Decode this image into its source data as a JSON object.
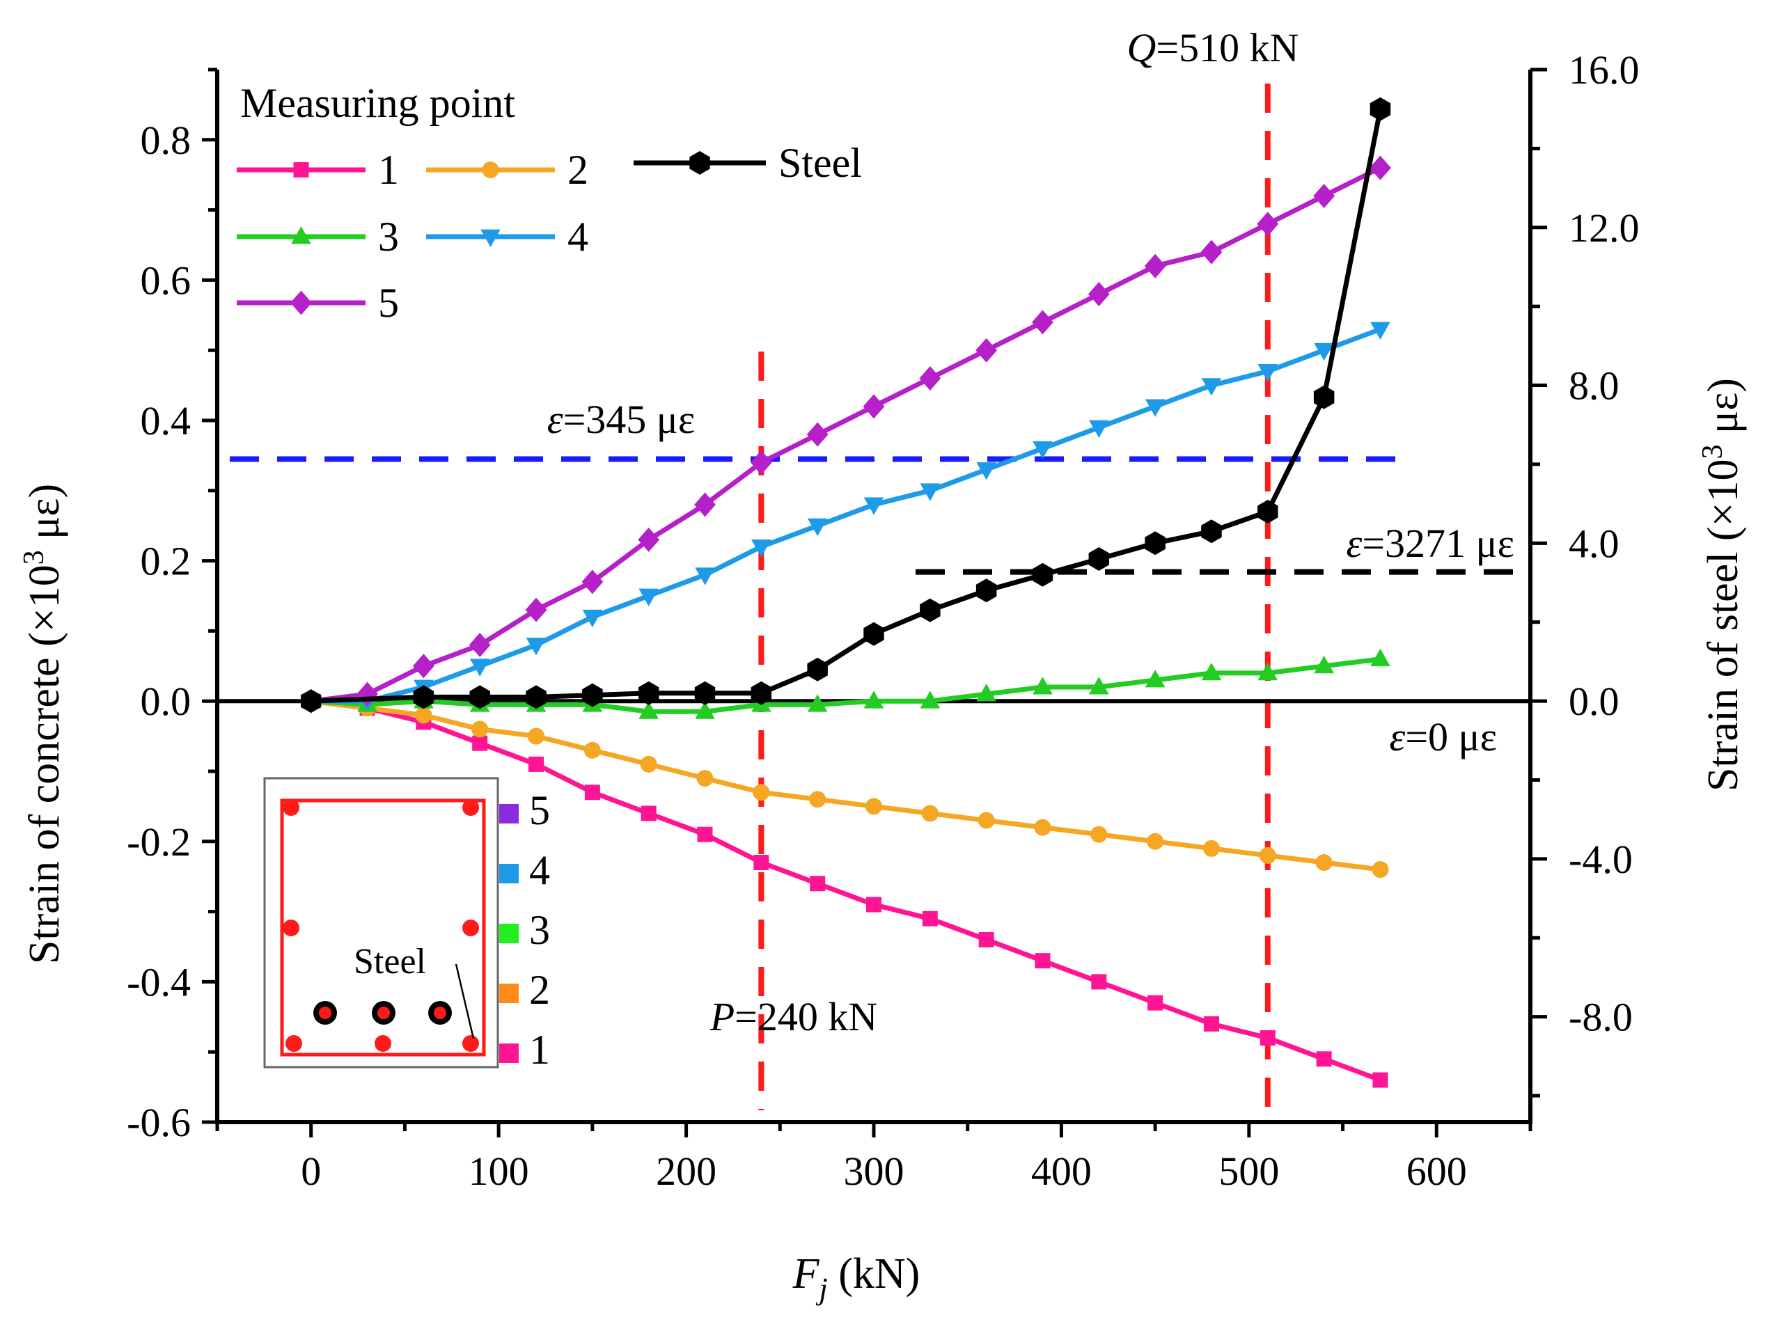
{
  "chart_data": {
    "type": "line",
    "x": [
      0,
      30,
      60,
      90,
      120,
      150,
      180,
      210,
      240,
      270,
      300,
      330,
      360,
      390,
      420,
      450,
      480,
      510,
      540,
      570
    ],
    "xlabel_main": "F",
    "xlabel_sub": "j",
    "xlabel_unit": " (kN)",
    "xlim": [
      -50,
      650
    ],
    "xticks": [
      0,
      100,
      200,
      300,
      400,
      500,
      600
    ],
    "ylabel_left_pre": "Strain of concrete (×10",
    "ylabel_left_sup": "3",
    "ylabel_left_post": " με)",
    "ylim_left": [
      -0.6,
      0.9
    ],
    "yticks_left": [
      "-0.6",
      "-0.4",
      "-0.2",
      "0.0",
      "0.2",
      "0.4",
      "0.6",
      "0.8"
    ],
    "ylabel_right_pre": "Strain of steel (×10",
    "ylabel_right_sup": "3",
    "ylabel_right_post": " με)",
    "ylim_right": [
      -10.67,
      16.0
    ],
    "yticks_right": [
      "-8.0",
      "-4.0",
      "0.0",
      "4.0",
      "8.0",
      "12.0",
      "16.0"
    ],
    "legend_title": "Measuring point",
    "series": [
      {
        "name": "1",
        "axis": "left",
        "color": "#ff1493",
        "marker": "square",
        "values": [
          0,
          -0.01,
          -0.03,
          -0.06,
          -0.09,
          -0.13,
          -0.16,
          -0.19,
          -0.23,
          -0.26,
          -0.29,
          -0.31,
          -0.34,
          -0.37,
          -0.4,
          -0.43,
          -0.46,
          -0.48,
          -0.51,
          -0.54
        ]
      },
      {
        "name": "2",
        "axis": "left",
        "color": "#f5a623",
        "marker": "circle",
        "values": [
          0,
          -0.01,
          -0.02,
          -0.04,
          -0.05,
          -0.07,
          -0.09,
          -0.11,
          -0.13,
          -0.14,
          -0.15,
          -0.16,
          -0.17,
          -0.18,
          -0.19,
          -0.2,
          -0.21,
          -0.22,
          -0.23,
          -0.24
        ]
      },
      {
        "name": "3",
        "axis": "left",
        "color": "#22cc22",
        "marker": "triangle-up",
        "values": [
          0,
          -0.005,
          0,
          -0.005,
          -0.005,
          -0.005,
          -0.015,
          -0.015,
          -0.005,
          -0.005,
          0,
          0,
          0.01,
          0.02,
          0.02,
          0.03,
          0.04,
          0.04,
          0.05,
          0.06
        ]
      },
      {
        "name": "4",
        "axis": "left",
        "color": "#1e9be8",
        "marker": "triangle-down",
        "values": [
          0,
          0,
          0.02,
          0.05,
          0.08,
          0.12,
          0.15,
          0.18,
          0.22,
          0.25,
          0.28,
          0.3,
          0.33,
          0.36,
          0.39,
          0.42,
          0.45,
          0.47,
          0.5,
          0.53
        ]
      },
      {
        "name": "5",
        "axis": "left",
        "color": "#b620c8",
        "marker": "diamond",
        "values": [
          0,
          0.01,
          0.05,
          0.08,
          0.13,
          0.17,
          0.23,
          0.28,
          0.34,
          0.38,
          0.42,
          0.46,
          0.5,
          0.54,
          0.58,
          0.62,
          0.64,
          0.68,
          0.72,
          0.76
        ]
      },
      {
        "name": "Steel",
        "axis": "right",
        "color": "#000000",
        "marker": "hexagon",
        "x": [
          0,
          60,
          90,
          120,
          150,
          180,
          210,
          240,
          270,
          300,
          330,
          360,
          390,
          420,
          450,
          480,
          510,
          540,
          570
        ],
        "values": [
          0,
          0.1,
          0.1,
          0.1,
          0.15,
          0.2,
          0.2,
          0.2,
          0.8,
          1.7,
          2.3,
          2.8,
          3.2,
          3.6,
          4.0,
          4.3,
          4.8,
          7.7,
          15.0
        ]
      }
    ],
    "reference_lines": [
      {
        "kind": "vertical",
        "x": 240,
        "label_main": "P",
        "label_rest": "=240 kN",
        "color": "#ff1a1a"
      },
      {
        "kind": "vertical",
        "x": 510,
        "label_main": "Q",
        "label_rest": "=510 kN",
        "color": "#ff1a1a"
      },
      {
        "kind": "horizontal",
        "axis": "left",
        "y": 0.345,
        "label_main": "ε",
        "label_rest": "=345 με",
        "color": "#1a1aff"
      },
      {
        "kind": "horizontal",
        "axis": "right",
        "y": 3.271,
        "label_main": "ε",
        "label_rest": "=3271 με",
        "color": "#000000"
      },
      {
        "kind": "horizontal",
        "axis": "left",
        "y": 0,
        "label_main": "ε",
        "label_rest": "=0 με",
        "color": "#000000"
      }
    ],
    "inset": {
      "legend": [
        {
          "label": "5",
          "color": "#8a2be2"
        },
        {
          "label": "4",
          "color": "#1e9be8"
        },
        {
          "label": "3",
          "color": "#22ee22"
        },
        {
          "label": "2",
          "color": "#ff8c1a"
        },
        {
          "label": "1",
          "color": "#ff1493"
        }
      ],
      "steel_label": "Steel"
    }
  }
}
